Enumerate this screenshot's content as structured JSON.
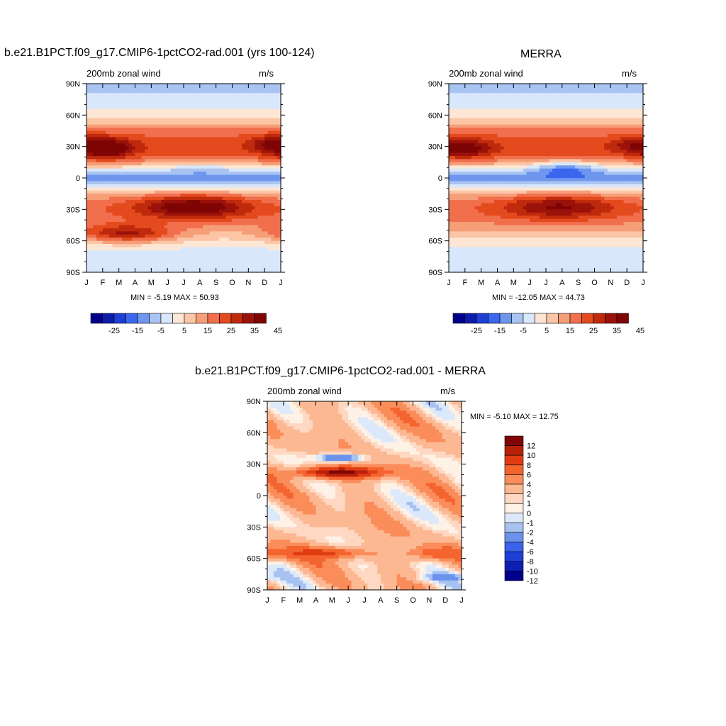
{
  "colors": {
    "main_scale": [
      "#00008b",
      "#0d1cab",
      "#1e3fd6",
      "#3b66ee",
      "#6f96ee",
      "#a9c4f2",
      "#d8e7fb",
      "#fde6d4",
      "#fcc6a6",
      "#f69e78",
      "#f16f4d",
      "#e34a1e",
      "#c02a0c",
      "#9a120a",
      "#7f0505"
    ],
    "diff_scale": [
      "#00008b",
      "#0c1fb1",
      "#1e3fd6",
      "#3a63ea",
      "#6c93ec",
      "#a7c2f1",
      "#dce9fb",
      "#fef2e6",
      "#fed8c2",
      "#fcb892",
      "#fa8d5a",
      "#f4642f",
      "#e03c12",
      "#b8200a",
      "#820505"
    ]
  },
  "panels": {
    "model": {
      "title": "b.e21.B1PCT.f09_g17.CMIP6-1pctCO2-rad.001 (yrs 100-124)",
      "left_label": "200mb zonal wind",
      "right_label": "m/s",
      "stats": "MIN =  -5.19 MAX =  50.93"
    },
    "obs": {
      "title": "MERRA",
      "left_label": "200mb zonal wind",
      "right_label": "m/s",
      "stats": "MIN = -12.05 MAX =  44.73"
    },
    "diff": {
      "title": "b.e21.B1PCT.f09_g17.CMIP6-1pctCO2-rad.001 - MERRA",
      "left_label": "200mb zonal wind",
      "right_label": "m/s",
      "stats": "MIN =  -5.10 MAX =  12.75"
    }
  },
  "chart_data": [
    {
      "type": "heatmap",
      "name": "model",
      "title": "b.e21.B1PCT.f09_g17.CMIP6-1pctCO2-rad.001 (yrs 100-124)",
      "subtitle_left": "200mb zonal wind",
      "units": "m/s",
      "x_ticks": [
        "J",
        "F",
        "M",
        "A",
        "M",
        "J",
        "J",
        "A",
        "S",
        "O",
        "N",
        "D",
        "J"
      ],
      "y_ticks": [
        "90N",
        "60N",
        "30N",
        "0",
        "30S",
        "60S",
        "90S"
      ],
      "ylim": [
        -90,
        90
      ],
      "colorbar_levels": [
        -30,
        -25,
        -20,
        -15,
        -10,
        -5,
        0,
        5,
        10,
        15,
        20,
        25,
        30,
        35,
        40,
        45
      ],
      "colorbar_labels": [
        "-25",
        "-15",
        "-5",
        "5",
        "15",
        "25",
        "35",
        "45"
      ],
      "min": -5.19,
      "max": 50.93,
      "features": [
        {
          "lat": 28,
          "month": 1.2,
          "peak": 50.9,
          "lat_width": 9,
          "month_width": 1.6
        },
        {
          "lat": 32,
          "month": 11.8,
          "peak": 45,
          "lat_width": 8,
          "month_width": 1.5
        },
        {
          "lat": -28,
          "month": 6.6,
          "peak": 46,
          "lat_width": 11,
          "month_width": 3.5
        },
        {
          "lat": -52,
          "month": 2.5,
          "peak": 36,
          "lat_width": 9,
          "month_width": 3
        },
        {
          "lat": 3,
          "month": 7,
          "peak": -5.2,
          "lat_width": 8,
          "month_width": 2.5
        }
      ]
    },
    {
      "type": "heatmap",
      "name": "obs",
      "title": "MERRA",
      "subtitle_left": "200mb zonal wind",
      "units": "m/s",
      "x_ticks": [
        "J",
        "F",
        "M",
        "A",
        "M",
        "J",
        "J",
        "A",
        "S",
        "O",
        "N",
        "D",
        "J"
      ],
      "y_ticks": [
        "90N",
        "60N",
        "30N",
        "0",
        "30S",
        "60S",
        "90S"
      ],
      "ylim": [
        -90,
        90
      ],
      "colorbar_levels": [
        -30,
        -25,
        -20,
        -15,
        -10,
        -5,
        0,
        5,
        10,
        15,
        20,
        25,
        30,
        35,
        40,
        45
      ],
      "colorbar_labels": [
        "-25",
        "-15",
        "-5",
        "5",
        "15",
        "25",
        "35",
        "45"
      ],
      "min": -12.05,
      "max": 44.73,
      "features": [
        {
          "lat": 28,
          "month": 1.0,
          "peak": 44.7,
          "lat_width": 8,
          "month_width": 1.6
        },
        {
          "lat": 31,
          "month": 11.8,
          "peak": 42,
          "lat_width": 7,
          "month_width": 1.5
        },
        {
          "lat": -28,
          "month": 6.8,
          "peak": 41,
          "lat_width": 11,
          "month_width": 3.5
        },
        {
          "lat": 6,
          "month": 7.2,
          "peak": -12.05,
          "lat_width": 8,
          "month_width": 2.2
        }
      ]
    },
    {
      "type": "heatmap",
      "name": "diff",
      "title": "b.e21.B1PCT.f09_g17.CMIP6-1pctCO2-rad.001 - MERRA",
      "subtitle_left": "200mb zonal wind",
      "units": "m/s",
      "x_ticks": [
        "J",
        "F",
        "M",
        "A",
        "M",
        "J",
        "J",
        "A",
        "S",
        "O",
        "N",
        "D",
        "J"
      ],
      "y_ticks": [
        "90N",
        "60N",
        "30N",
        "0",
        "30S",
        "60S",
        "90S"
      ],
      "ylim": [
        -90,
        90
      ],
      "colorbar_levels": [
        -14,
        -12,
        -10,
        -8,
        -6,
        -4,
        -2,
        -1,
        0,
        1,
        2,
        4,
        6,
        8,
        10,
        12,
        14
      ],
      "colorbar_labels": [
        "12",
        "10",
        "8",
        "6",
        "4",
        "2",
        "1",
        "0",
        "-1",
        "-2",
        "-4",
        "-6",
        "-8",
        "-10",
        "-12"
      ],
      "min": -5.1,
      "max": 12.75,
      "features": [
        {
          "lat": 22,
          "month": 4.5,
          "peak": 12.75,
          "lat_width": 6,
          "month_width": 3
        },
        {
          "lat": -55,
          "month": 3.2,
          "peak": 9,
          "lat_width": 6,
          "month_width": 3
        },
        {
          "lat": -55,
          "month": 10.8,
          "peak": 8,
          "lat_width": 6,
          "month_width": 2
        },
        {
          "lat": 36,
          "month": 4.5,
          "peak": -5.1,
          "lat_width": 4,
          "month_width": 1.5
        },
        {
          "lat": -78,
          "month": 11,
          "peak": -3,
          "lat_width": 4,
          "month_width": 1.5
        }
      ]
    }
  ]
}
